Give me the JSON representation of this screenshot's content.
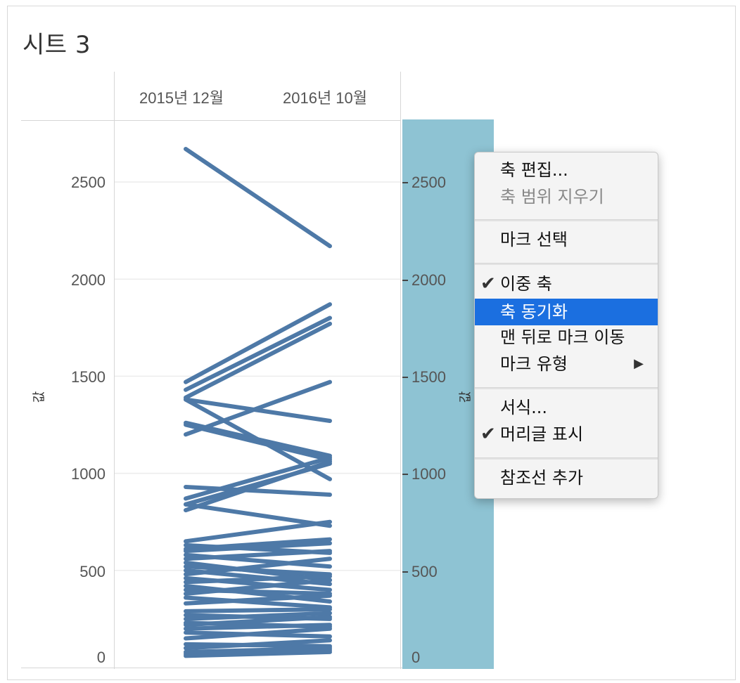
{
  "sheet": {
    "title": "시트 3"
  },
  "columns": [
    "2015년 12월",
    "2016년 10월"
  ],
  "axis": {
    "left_label": "값",
    "right_label": "값",
    "left_ticks": [
      "2500",
      "2000",
      "1500",
      "1000",
      "500",
      "0"
    ],
    "right_ticks": [
      "2500",
      "2000",
      "1500",
      "1000",
      "500",
      "0"
    ]
  },
  "colors": {
    "line": "#4e79a7",
    "axis_band": "#8ec3d3",
    "menu_highlight": "#1b6fe0"
  },
  "context_menu": {
    "edit_axis": "축 편집...",
    "clear_axis_range": "축 범위 지우기",
    "select_marks": "마크 선택",
    "dual_axis": "이중 축",
    "synchronize_axis": "축 동기화",
    "move_marks_to_back": "맨 뒤로 마크 이동",
    "mark_type": "마크 유형",
    "format": "서식...",
    "show_header": "머리글 표시",
    "add_reference_line": "참조선 추가"
  },
  "chart_data": {
    "type": "line",
    "categories": [
      "2015년 12월",
      "2016년 10월"
    ],
    "ylim": [
      0,
      2700
    ],
    "lines": [
      [
        2670,
        2170
      ],
      [
        1470,
        1870
      ],
      [
        1430,
        1800
      ],
      [
        1390,
        1770
      ],
      [
        1380,
        1270
      ],
      [
        1380,
        970
      ],
      [
        1260,
        1090
      ],
      [
        1250,
        1070
      ],
      [
        1200,
        1470
      ],
      [
        930,
        890
      ],
      [
        870,
        1080
      ],
      [
        840,
        1050
      ],
      [
        810,
        1060
      ],
      [
        840,
        730
      ],
      [
        650,
        750
      ],
      [
        630,
        590
      ],
      [
        610,
        660
      ],
      [
        600,
        640
      ],
      [
        580,
        520
      ],
      [
        560,
        600
      ],
      [
        540,
        450
      ],
      [
        520,
        480
      ],
      [
        500,
        430
      ],
      [
        480,
        560
      ],
      [
        460,
        400
      ],
      [
        440,
        470
      ],
      [
        420,
        340
      ],
      [
        400,
        380
      ],
      [
        380,
        450
      ],
      [
        360,
        310
      ],
      [
        330,
        370
      ],
      [
        290,
        300
      ],
      [
        270,
        250
      ],
      [
        250,
        280
      ],
      [
        230,
        210
      ],
      [
        220,
        260
      ],
      [
        200,
        220
      ],
      [
        180,
        160
      ],
      [
        150,
        200
      ],
      [
        120,
        110
      ],
      [
        100,
        140
      ],
      [
        80,
        100
      ],
      [
        70,
        90
      ],
      [
        60,
        80
      ]
    ]
  }
}
